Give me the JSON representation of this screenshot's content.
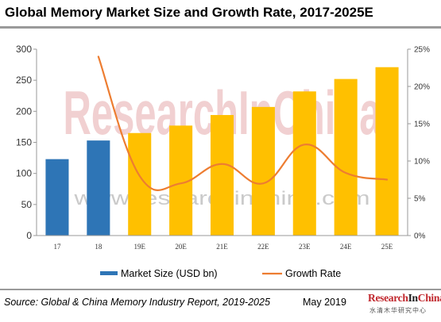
{
  "title": "Global Memory Market Size and Growth Rate, 2017-2025E",
  "watermark": {
    "logo_text": "ResearchInChina",
    "url_text": "www.researchinchina.com"
  },
  "source": "Source: Global & China Memory Industry Report, 2019-2025",
  "date": "May 2019",
  "brand": {
    "part1": "Research",
    "part2": "In",
    "part3": "China",
    "tagline": "水清木华研究中心"
  },
  "colors": {
    "actual_bar": "#2e75b6",
    "forecast_bar": "#ffc000",
    "growth_line": "#ed7d31",
    "watermark_red": "#c0272d"
  },
  "chart_data": {
    "type": "bar",
    "categories": [
      "17",
      "18",
      "19E",
      "20E",
      "21E",
      "22E",
      "23E",
      "24E",
      "25E"
    ],
    "series": [
      {
        "name": "Market Size (USD bn)",
        "type": "bar",
        "axis": "left",
        "values": [
          123,
          153,
          165,
          177,
          194,
          207,
          232,
          252,
          271
        ]
      },
      {
        "name": "Growth Rate",
        "type": "line",
        "axis": "right",
        "values": [
          null,
          24.0,
          8.0,
          7.0,
          9.6,
          7.0,
          12.2,
          8.4,
          7.5
        ]
      }
    ],
    "y_left": {
      "min": 0,
      "max": 300,
      "ticks": [
        "0",
        "50",
        "100",
        "150",
        "200",
        "250",
        "300"
      ]
    },
    "y_right": {
      "min": 0,
      "max": 25,
      "ticks": [
        "0%",
        "5%",
        "10%",
        "15%",
        "20%",
        "25%"
      ]
    },
    "legend": {
      "position": "bottom",
      "items": [
        "Market Size (USD bn)",
        "Growth Rate"
      ]
    },
    "grid": false
  }
}
